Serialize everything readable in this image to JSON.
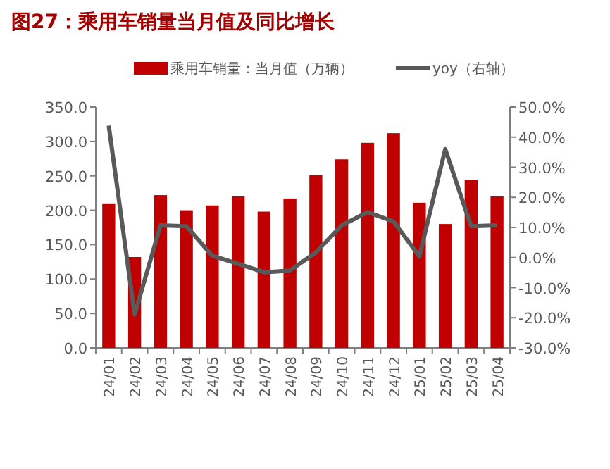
{
  "chart_data": {
    "type": "bar",
    "title": "图27：乘用车销量当月值及同比增长",
    "categories": [
      "24/01",
      "24/02",
      "24/03",
      "24/04",
      "24/05",
      "24/06",
      "24/07",
      "24/08",
      "24/09",
      "24/10",
      "24/11",
      "24/12",
      "25/01",
      "25/02",
      "25/03",
      "25/04"
    ],
    "series": [
      {
        "name": "乘用车销量：当月值（万辆）",
        "color": "#c00000",
        "values": [
          210,
          132,
          222,
          200,
          207,
          220,
          198,
          217,
          251,
          274,
          298,
          312,
          211,
          180,
          244,
          220
        ]
      },
      {
        "name": "yoy（右轴）",
        "type": "line",
        "axis": "y2",
        "color": "#595959",
        "values": [
          43.8,
          -18.9,
          10.7,
          10.4,
          0.6,
          -2.1,
          -4.9,
          -4.3,
          1.7,
          10.7,
          15.1,
          12,
          0.4,
          36,
          10.4,
          10.7
        ]
      }
    ],
    "ylim": [
      0,
      350
    ],
    "yticks": [
      {
        "value": 0,
        "label": "0.0"
      },
      {
        "value": 50,
        "label": "50.0"
      },
      {
        "value": 100,
        "label": "100.0"
      },
      {
        "value": 150,
        "label": "150.0"
      },
      {
        "value": 200,
        "label": "200.0"
      },
      {
        "value": 250,
        "label": "250.0"
      },
      {
        "value": 300,
        "label": "300.0"
      },
      {
        "value": 350,
        "label": "350.0"
      }
    ],
    "y2lim": [
      -30,
      50
    ],
    "y2ticks": [
      {
        "value": -30,
        "label": "-30.0%"
      },
      {
        "value": -20,
        "label": "-20.0%"
      },
      {
        "value": -10,
        "label": "-10.0%"
      },
      {
        "value": 0,
        "label": "0.0%"
      },
      {
        "value": 10,
        "label": "10.0%"
      },
      {
        "value": 20,
        "label": "20.0%"
      },
      {
        "value": 30,
        "label": "30.0%"
      },
      {
        "value": 40,
        "label": "40.0%"
      },
      {
        "value": 50,
        "label": "50.0%"
      }
    ],
    "grid": false,
    "legend": "top",
    "marker": "none",
    "line_style": "solid"
  }
}
